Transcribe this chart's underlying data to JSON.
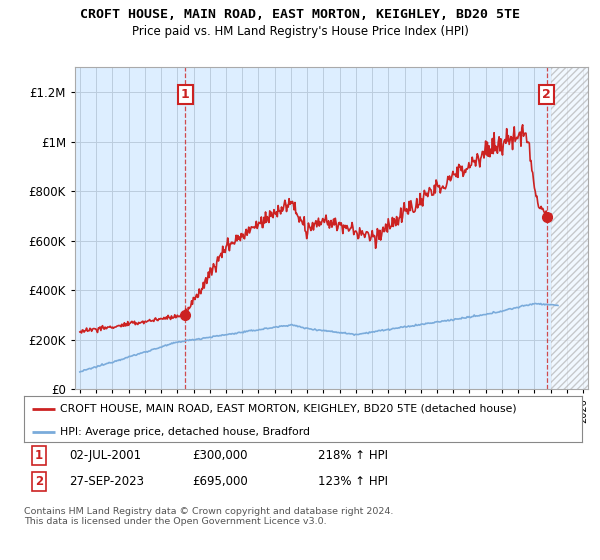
{
  "title": "CROFT HOUSE, MAIN ROAD, EAST MORTON, KEIGHLEY, BD20 5TE",
  "subtitle": "Price paid vs. HM Land Registry's House Price Index (HPI)",
  "legend_line1": "CROFT HOUSE, MAIN ROAD, EAST MORTON, KEIGHLEY, BD20 5TE (detached house)",
  "legend_line2": "HPI: Average price, detached house, Bradford",
  "transaction1_label": "1",
  "transaction1_date": "02-JUL-2001",
  "transaction1_price": "£300,000",
  "transaction1_hpi": "218% ↑ HPI",
  "transaction2_label": "2",
  "transaction2_date": "27-SEP-2023",
  "transaction2_price": "£695,000",
  "transaction2_hpi": "123% ↑ HPI",
  "footnote": "Contains HM Land Registry data © Crown copyright and database right 2024.\nThis data is licensed under the Open Government Licence v3.0.",
  "ylim": [
    0,
    1300000
  ],
  "yticks": [
    0,
    200000,
    400000,
    600000,
    800000,
    1000000,
    1200000
  ],
  "ytick_labels": [
    "£0",
    "£200K",
    "£400K",
    "£600K",
    "£800K",
    "£1M",
    "£1.2M"
  ],
  "hpi_color": "#7aabdb",
  "price_color": "#cc2222",
  "bg_color": "#ffffff",
  "chart_bg_color": "#ddeeff",
  "grid_color": "#bbccdd",
  "transaction1_x": 2001.5,
  "transaction1_y": 300000,
  "transaction2_x": 2023.75,
  "transaction2_y": 695000,
  "xmin": 1995,
  "xmax": 2026,
  "hatch_start": 2024.0
}
